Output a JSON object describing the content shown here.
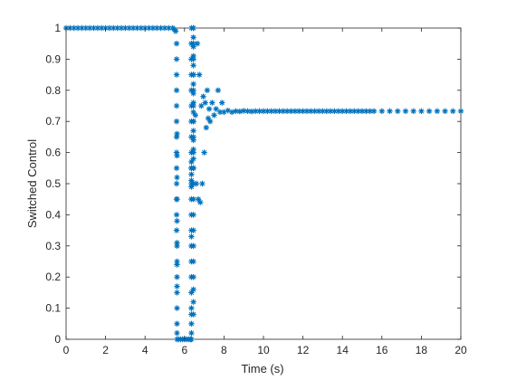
{
  "chart_data": {
    "type": "scatter",
    "marker": "asterisk",
    "color": "#0072bd",
    "xlabel": "Time (s)",
    "ylabel": "Switched Control",
    "xlim": [
      0,
      20
    ],
    "ylim": [
      0,
      1
    ],
    "xticks": [
      "0",
      "2",
      "4",
      "6",
      "8",
      "10",
      "12",
      "14",
      "16",
      "18",
      "20"
    ],
    "yticks": [
      "0",
      "0.1",
      "0.2",
      "0.3",
      "0.4",
      "0.5",
      "0.6",
      "0.7",
      "0.8",
      "0.9",
      "1"
    ],
    "grid": false,
    "box": true,
    "series": [
      {
        "x": [
          0,
          0.2,
          0.4,
          0.6,
          0.8,
          1.0,
          1.2,
          1.4,
          1.6,
          1.8,
          2.0,
          2.2,
          2.4,
          2.6,
          2.8,
          3.0,
          3.2,
          3.4,
          3.6,
          3.8,
          4.0,
          4.2,
          4.4,
          4.6,
          4.8,
          5.0,
          5.2,
          5.4,
          5.5,
          5.55,
          5.6,
          5.6,
          5.6,
          5.6,
          5.6,
          5.6,
          5.6,
          5.6,
          5.6,
          5.6,
          5.6,
          5.6,
          5.6,
          5.62,
          5.62,
          5.62,
          5.62,
          5.62,
          5.62,
          5.62,
          5.62,
          5.62,
          5.62,
          5.62,
          5.62,
          5.62,
          5.62,
          5.62,
          5.62,
          5.7,
          5.8,
          5.9,
          6.0,
          6.1,
          6.2,
          6.3,
          6.35,
          6.35,
          6.35,
          6.35,
          6.35,
          6.35,
          6.35,
          6.35,
          6.35,
          6.35,
          6.35,
          6.35,
          6.35,
          6.35,
          6.35,
          6.35,
          6.35,
          6.35,
          6.35,
          6.35,
          6.35,
          6.35,
          6.35,
          6.35,
          6.35,
          6.35,
          6.35,
          6.35,
          6.35,
          6.45,
          6.45,
          6.45,
          6.45,
          6.45,
          6.45,
          6.45,
          6.45,
          6.45,
          6.45,
          6.45,
          6.45,
          6.45,
          6.45,
          6.45,
          6.45,
          6.45,
          6.45,
          6.45,
          6.45,
          6.45,
          6.45,
          6.45,
          6.45,
          6.45,
          6.45,
          6.45,
          6.45,
          6.45,
          6.45,
          6.45,
          6.45,
          6.45,
          6.45,
          6.45,
          6.45,
          6.55,
          6.6,
          6.65,
          6.7,
          6.75,
          6.8,
          6.85,
          6.9,
          6.95,
          7.0,
          7.05,
          7.1,
          7.15,
          7.2,
          7.25,
          7.3,
          7.4,
          7.5,
          7.6,
          7.7,
          7.8,
          7.9,
          8.0,
          8.2,
          8.4,
          8.6,
          8.8,
          9.0,
          9.2,
          9.4,
          9.6,
          9.8,
          10.0,
          10.2,
          10.4,
          10.6,
          10.8,
          11.0,
          11.2,
          11.4,
          11.6,
          11.8,
          12.0,
          12.2,
          12.4,
          12.6,
          12.8,
          13.0,
          13.2,
          13.4,
          13.6,
          13.8,
          14.0,
          14.2,
          14.4,
          14.6,
          14.8,
          15.0,
          15.2,
          15.4,
          15.6,
          16.0,
          16.4,
          16.8,
          17.2,
          17.6,
          18.0,
          18.4,
          18.8,
          19.2,
          19.6,
          20.0
        ],
        "y": [
          1.0,
          1.0,
          1.0,
          1.0,
          1.0,
          1.0,
          1.0,
          1.0,
          1.0,
          1.0,
          1.0,
          1.0,
          1.0,
          1.0,
          1.0,
          1.0,
          1.0,
          1.0,
          1.0,
          1.0,
          1.0,
          1.0,
          1.0,
          1.0,
          1.0,
          1.0,
          1.0,
          1.0,
          0.995,
          0.99,
          0.95,
          0.9,
          0.85,
          0.8,
          0.75,
          0.7,
          0.65,
          0.6,
          0.55,
          0.5,
          0.45,
          0.4,
          0.35,
          0.3,
          0.25,
          0.2,
          0.15,
          0.1,
          0.05,
          0.02,
          0.0,
          0.66,
          0.59,
          0.52,
          0.45,
          0.38,
          0.31,
          0.24,
          0.17,
          0.0,
          0.0,
          0.0,
          0.0,
          0.0,
          0.0,
          0.0,
          0.0,
          0.02,
          0.05,
          0.08,
          0.1,
          0.15,
          0.2,
          0.25,
          0.3,
          0.33,
          0.35,
          0.4,
          0.45,
          0.5,
          0.55,
          0.6,
          0.65,
          0.7,
          0.75,
          0.8,
          0.85,
          0.9,
          0.95,
          1.0,
          0.57,
          0.55,
          0.53,
          0.51,
          0.49,
          0.08,
          0.12,
          0.16,
          0.2,
          0.25,
          0.3,
          0.35,
          0.4,
          0.45,
          0.5,
          0.55,
          0.6,
          0.65,
          0.7,
          0.75,
          0.8,
          0.85,
          0.9,
          0.95,
          1.0,
          1.0,
          0.97,
          0.94,
          0.91,
          0.88,
          0.85,
          0.82,
          0.79,
          0.76,
          0.73,
          0.7,
          0.67,
          0.64,
          0.61,
          0.58,
          0.55,
          0.72,
          0.5,
          0.95,
          0.45,
          0.85,
          0.44,
          0.75,
          0.5,
          0.78,
          0.6,
          0.76,
          0.68,
          0.8,
          0.71,
          0.74,
          0.7,
          0.76,
          0.72,
          0.74,
          0.8,
          0.73,
          0.76,
          0.73,
          0.735,
          0.73,
          0.733,
          0.732,
          0.734,
          0.733,
          0.732,
          0.733,
          0.733,
          0.733,
          0.733,
          0.733,
          0.733,
          0.733,
          0.733,
          0.733,
          0.733,
          0.733,
          0.733,
          0.733,
          0.733,
          0.733,
          0.733,
          0.733,
          0.733,
          0.733,
          0.733,
          0.733,
          0.733,
          0.733,
          0.733,
          0.733,
          0.733,
          0.733,
          0.733,
          0.733,
          0.733,
          0.733,
          0.733,
          0.733,
          0.733,
          0.733,
          0.733,
          0.733,
          0.733,
          0.733,
          0.733,
          0.733,
          0.733
        ]
      }
    ]
  }
}
